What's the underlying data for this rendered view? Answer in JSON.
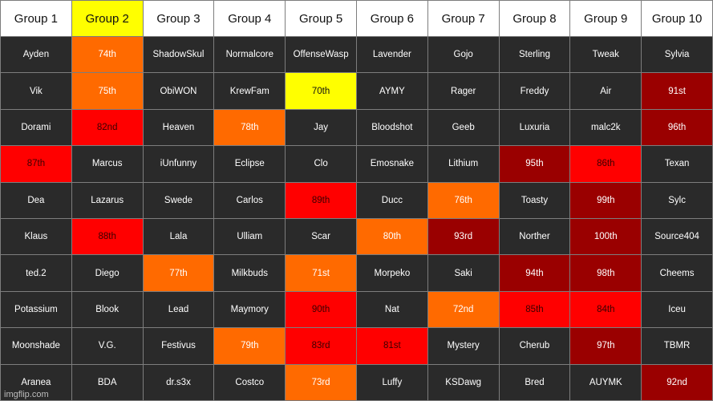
{
  "colors": {
    "default_cell": "#2a2a2a",
    "header": "#ffffff",
    "yellow": "#ffff00",
    "orange": "#ff6a00",
    "red": "#ff0000",
    "darkred": "#9a0000"
  },
  "headers": [
    "Group 1",
    "Group 2",
    "Group 3",
    "Group 4",
    "Group 5",
    "Group 6",
    "Group 7",
    "Group 8",
    "Group 9",
    "Group 10"
  ],
  "header_highlight_index": 1,
  "rows": [
    [
      {
        "text": "Ayden"
      },
      {
        "text": "74th",
        "color": "orange"
      },
      {
        "text": "ShadowSkul"
      },
      {
        "text": "Normalcore"
      },
      {
        "text": "OffenseWasp"
      },
      {
        "text": "Lavender"
      },
      {
        "text": "Gojo"
      },
      {
        "text": "Sterling"
      },
      {
        "text": "Tweak"
      },
      {
        "text": "Sylvia"
      }
    ],
    [
      {
        "text": "Vik"
      },
      {
        "text": "75th",
        "color": "orange"
      },
      {
        "text": "ObiWON"
      },
      {
        "text": "KrewFam"
      },
      {
        "text": "70th",
        "color": "yellow"
      },
      {
        "text": "AYMY"
      },
      {
        "text": "Rager"
      },
      {
        "text": "Freddy"
      },
      {
        "text": "Air"
      },
      {
        "text": "91st",
        "color": "darkred"
      }
    ],
    [
      {
        "text": "Dorami"
      },
      {
        "text": "82nd",
        "color": "red"
      },
      {
        "text": "Heaven"
      },
      {
        "text": "78th",
        "color": "orange"
      },
      {
        "text": "Jay"
      },
      {
        "text": "Bloodshot"
      },
      {
        "text": "Geeb"
      },
      {
        "text": "Luxuria"
      },
      {
        "text": "malc2k"
      },
      {
        "text": "96th",
        "color": "darkred"
      }
    ],
    [
      {
        "text": "87th",
        "color": "red"
      },
      {
        "text": "Marcus"
      },
      {
        "text": "iUnfunny"
      },
      {
        "text": "Eclipse"
      },
      {
        "text": "Clo"
      },
      {
        "text": "Emosnake"
      },
      {
        "text": "Lithium"
      },
      {
        "text": "95th",
        "color": "darkred"
      },
      {
        "text": "86th",
        "color": "red"
      },
      {
        "text": "Texan"
      }
    ],
    [
      {
        "text": "Dea"
      },
      {
        "text": "Lazarus"
      },
      {
        "text": "Swede"
      },
      {
        "text": "Carlos"
      },
      {
        "text": "89th",
        "color": "red"
      },
      {
        "text": "Ducc"
      },
      {
        "text": "76th",
        "color": "orange"
      },
      {
        "text": "Toasty"
      },
      {
        "text": "99th",
        "color": "darkred"
      },
      {
        "text": "Sylc"
      }
    ],
    [
      {
        "text": "Klaus"
      },
      {
        "text": "88th",
        "color": "red"
      },
      {
        "text": "Lala"
      },
      {
        "text": "Ulliam"
      },
      {
        "text": "Scar"
      },
      {
        "text": "80th",
        "color": "orange"
      },
      {
        "text": "93rd",
        "color": "darkred"
      },
      {
        "text": "Norther"
      },
      {
        "text": "100th",
        "color": "darkred"
      },
      {
        "text": "Source404"
      }
    ],
    [
      {
        "text": "ted.2"
      },
      {
        "text": "Diego"
      },
      {
        "text": "77th",
        "color": "orange"
      },
      {
        "text": "Milkbuds"
      },
      {
        "text": "71st",
        "color": "orange"
      },
      {
        "text": "Morpeko"
      },
      {
        "text": "Saki"
      },
      {
        "text": "94th",
        "color": "darkred"
      },
      {
        "text": "98th",
        "color": "darkred"
      },
      {
        "text": "Cheems"
      }
    ],
    [
      {
        "text": "Potassium"
      },
      {
        "text": "Blook"
      },
      {
        "text": "Lead"
      },
      {
        "text": "Maymory"
      },
      {
        "text": "90th",
        "color": "red"
      },
      {
        "text": "Nat"
      },
      {
        "text": "72nd",
        "color": "orange"
      },
      {
        "text": "85th",
        "color": "red"
      },
      {
        "text": "84th",
        "color": "red"
      },
      {
        "text": "Iceu"
      }
    ],
    [
      {
        "text": "Moonshade"
      },
      {
        "text": "V.G."
      },
      {
        "text": "Festivus"
      },
      {
        "text": "79th",
        "color": "orange"
      },
      {
        "text": "83rd",
        "color": "red"
      },
      {
        "text": "81st",
        "color": "red"
      },
      {
        "text": "Mystery"
      },
      {
        "text": "Cherub"
      },
      {
        "text": "97th",
        "color": "darkred"
      },
      {
        "text": "TBMR"
      }
    ],
    [
      {
        "text": "Aranea"
      },
      {
        "text": "BDA"
      },
      {
        "text": "dr.s3x"
      },
      {
        "text": "Costco"
      },
      {
        "text": "73rd",
        "color": "orange"
      },
      {
        "text": "Luffy"
      },
      {
        "text": "KSDawg"
      },
      {
        "text": "Bred"
      },
      {
        "text": "AUYMK"
      },
      {
        "text": "92nd",
        "color": "darkred"
      }
    ]
  ],
  "watermark": "imgflip.com"
}
